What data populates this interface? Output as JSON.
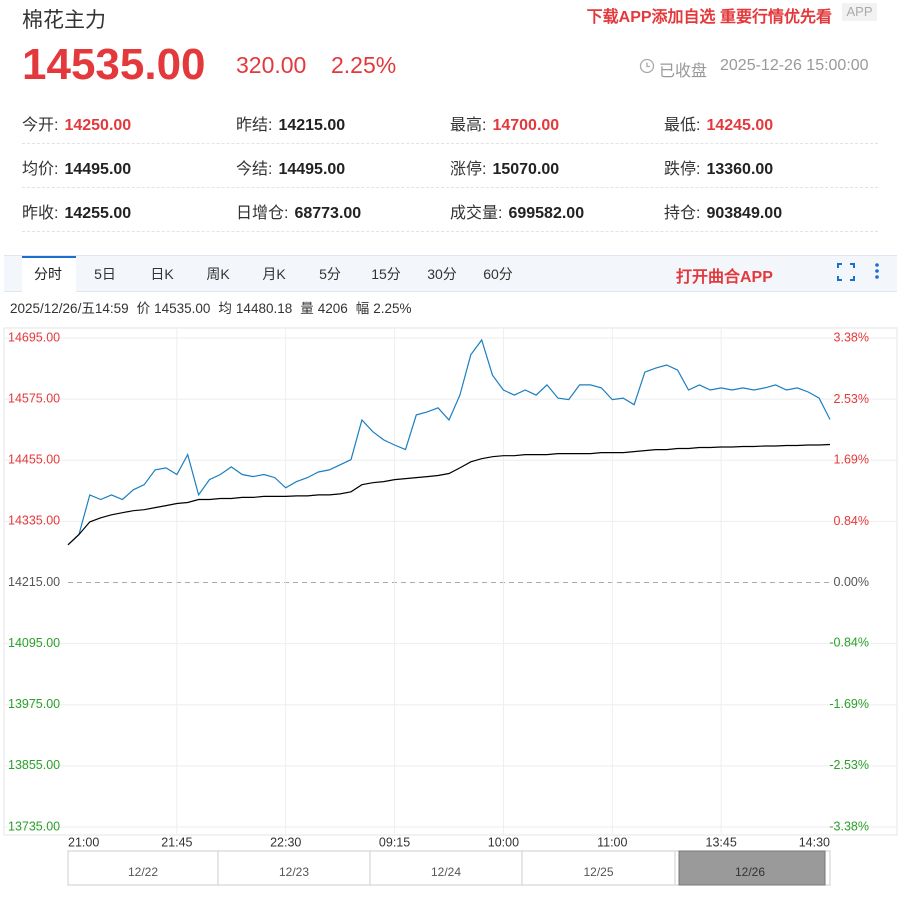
{
  "quote": {
    "title": "棉花主力",
    "promo": "下载APP添加自选 重要行情优先看",
    "badge": "APP",
    "price": "14535.00",
    "change": "320.00",
    "change_pct": "2.25%",
    "status": "已收盘",
    "time": "2025-12-26 15:00:00",
    "up_color": "#e4393c"
  },
  "stats": [
    [
      {
        "label": "今开:",
        "value": "14250.00",
        "color": "#e4393c"
      },
      {
        "label": "昨结:",
        "value": "14215.00",
        "color": "#222"
      },
      {
        "label": "最高:",
        "value": "14700.00",
        "color": "#e4393c"
      },
      {
        "label": "最低:",
        "value": "14245.00",
        "color": "#e4393c"
      }
    ],
    [
      {
        "label": "均价:",
        "value": "14495.00",
        "color": "#222"
      },
      {
        "label": "今结:",
        "value": "14495.00",
        "color": "#222"
      },
      {
        "label": "涨停:",
        "value": "15070.00",
        "color": "#222"
      },
      {
        "label": "跌停:",
        "value": "13360.00",
        "color": "#222"
      }
    ],
    [
      {
        "label": "昨收:",
        "value": "14255.00",
        "color": "#222"
      },
      {
        "label": "日增仓:",
        "value": "68773.00",
        "color": "#222"
      },
      {
        "label": "成交量:",
        "value": "699582.00",
        "color": "#222"
      },
      {
        "label": "持仓:",
        "value": "903849.00",
        "color": "#222"
      }
    ]
  ],
  "tabs": [
    "分时",
    "5日",
    "日K",
    "周K",
    "月K",
    "5分",
    "15分",
    "30分",
    "60分"
  ],
  "active_tab": 0,
  "open_app": "打开曲合APP",
  "info": {
    "time": "2025/12/26/五14:59",
    "items": [
      {
        "label": "价",
        "value": "14535.00"
      },
      {
        "label": "均",
        "value": "14480.18"
      },
      {
        "label": "量",
        "value": "4206"
      },
      {
        "label": "幅",
        "value": "2.25%"
      }
    ]
  },
  "chart_data": {
    "type": "line",
    "categories": [
      "21:00",
      null,
      null,
      null,
      null,
      null,
      null,
      null,
      null,
      null,
      "21:45",
      null,
      null,
      null,
      null,
      null,
      null,
      null,
      null,
      null,
      "22:30",
      null,
      null,
      null,
      null,
      null,
      null,
      null,
      null,
      null,
      "09:15",
      null,
      null,
      null,
      null,
      null,
      null,
      null,
      null,
      null,
      "10:00",
      null,
      null,
      null,
      null,
      null,
      null,
      null,
      null,
      null,
      "11:00",
      null,
      null,
      null,
      null,
      null,
      null,
      null,
      null,
      null,
      "13:45",
      null,
      null,
      null,
      null,
      null,
      null,
      null,
      null,
      null,
      "14:30"
    ],
    "series": [
      {
        "name": "价",
        "color": "#1a7fc1",
        "values": [
          14289,
          14309,
          14387,
          14378,
          14387,
          14378,
          14397,
          14407,
          14436,
          14440,
          14427,
          14466,
          14387,
          14417,
          14427,
          14442,
          14427,
          14423,
          14427,
          14421,
          14401,
          14413,
          14421,
          14432,
          14436,
          14446,
          14456,
          14534,
          14511,
          14495,
          14485,
          14476,
          14544,
          14550,
          14558,
          14534,
          14583,
          14662,
          14691,
          14622,
          14593,
          14583,
          14593,
          14583,
          14603,
          14577,
          14574,
          14603,
          14603,
          14597,
          14574,
          14577,
          14564,
          14628,
          14636,
          14642,
          14632,
          14593,
          14603,
          14593,
          14597,
          14593,
          14597,
          14593,
          14597,
          14603,
          14593,
          14597,
          14589,
          14577,
          14535
        ]
      },
      {
        "name": "均",
        "color": "#000000",
        "values": [
          14289,
          14309,
          14334,
          14342,
          14348,
          14352,
          14356,
          14358,
          14362,
          14366,
          14370,
          14372,
          14378,
          14378,
          14380,
          14380,
          14382,
          14382,
          14384,
          14384,
          14384,
          14385,
          14385,
          14387,
          14387,
          14389,
          14393,
          14407,
          14411,
          14413,
          14417,
          14419,
          14421,
          14423,
          14425,
          14429,
          14440,
          14452,
          14458,
          14462,
          14464,
          14464,
          14466,
          14466,
          14466,
          14468,
          14468,
          14468,
          14468,
          14470,
          14470,
          14470,
          14472,
          14474,
          14476,
          14476,
          14478,
          14478,
          14480,
          14480,
          14481,
          14481,
          14482,
          14482,
          14483,
          14483,
          14484,
          14484,
          14485,
          14485,
          14486
        ]
      }
    ],
    "ylim": [
      13735,
      14695
    ],
    "yticks": [
      {
        "value": 14695,
        "label": "14695.00"
      },
      {
        "value": 14575,
        "label": "14575.00"
      },
      {
        "value": 14455,
        "label": "14455.00"
      },
      {
        "value": 14335,
        "label": "14335.00"
      },
      {
        "value": 14215,
        "label": "14215.00"
      },
      {
        "value": 14095,
        "label": "14095.00"
      },
      {
        "value": 13975,
        "label": "13975.00"
      },
      {
        "value": 13855,
        "label": "13855.00"
      },
      {
        "value": 13735,
        "label": "13735.00"
      }
    ],
    "y2lim": [
      -3.38,
      3.38
    ],
    "y2ticks": [
      {
        "value": 3.38,
        "label": "3.38%"
      },
      {
        "value": 2.53,
        "label": "2.53%"
      },
      {
        "value": 1.69,
        "label": "1.69%"
      },
      {
        "value": 0.84,
        "label": "0.84%"
      },
      {
        "value": 0,
        "label": "0.00%"
      },
      {
        "value": -0.84,
        "label": "-0.84%"
      },
      {
        "value": -1.69,
        "label": "-1.69%"
      },
      {
        "value": -2.53,
        "label": "-2.53%"
      },
      {
        "value": -3.38,
        "label": "-3.38%"
      }
    ],
    "up_color": "#e4393c",
    "down_color": "#2aa02a",
    "flat_color": "#555555",
    "grid": true
  },
  "navigator": {
    "dates": [
      "12/22",
      "12/23",
      "12/24",
      "12/25",
      "12/26"
    ]
  }
}
